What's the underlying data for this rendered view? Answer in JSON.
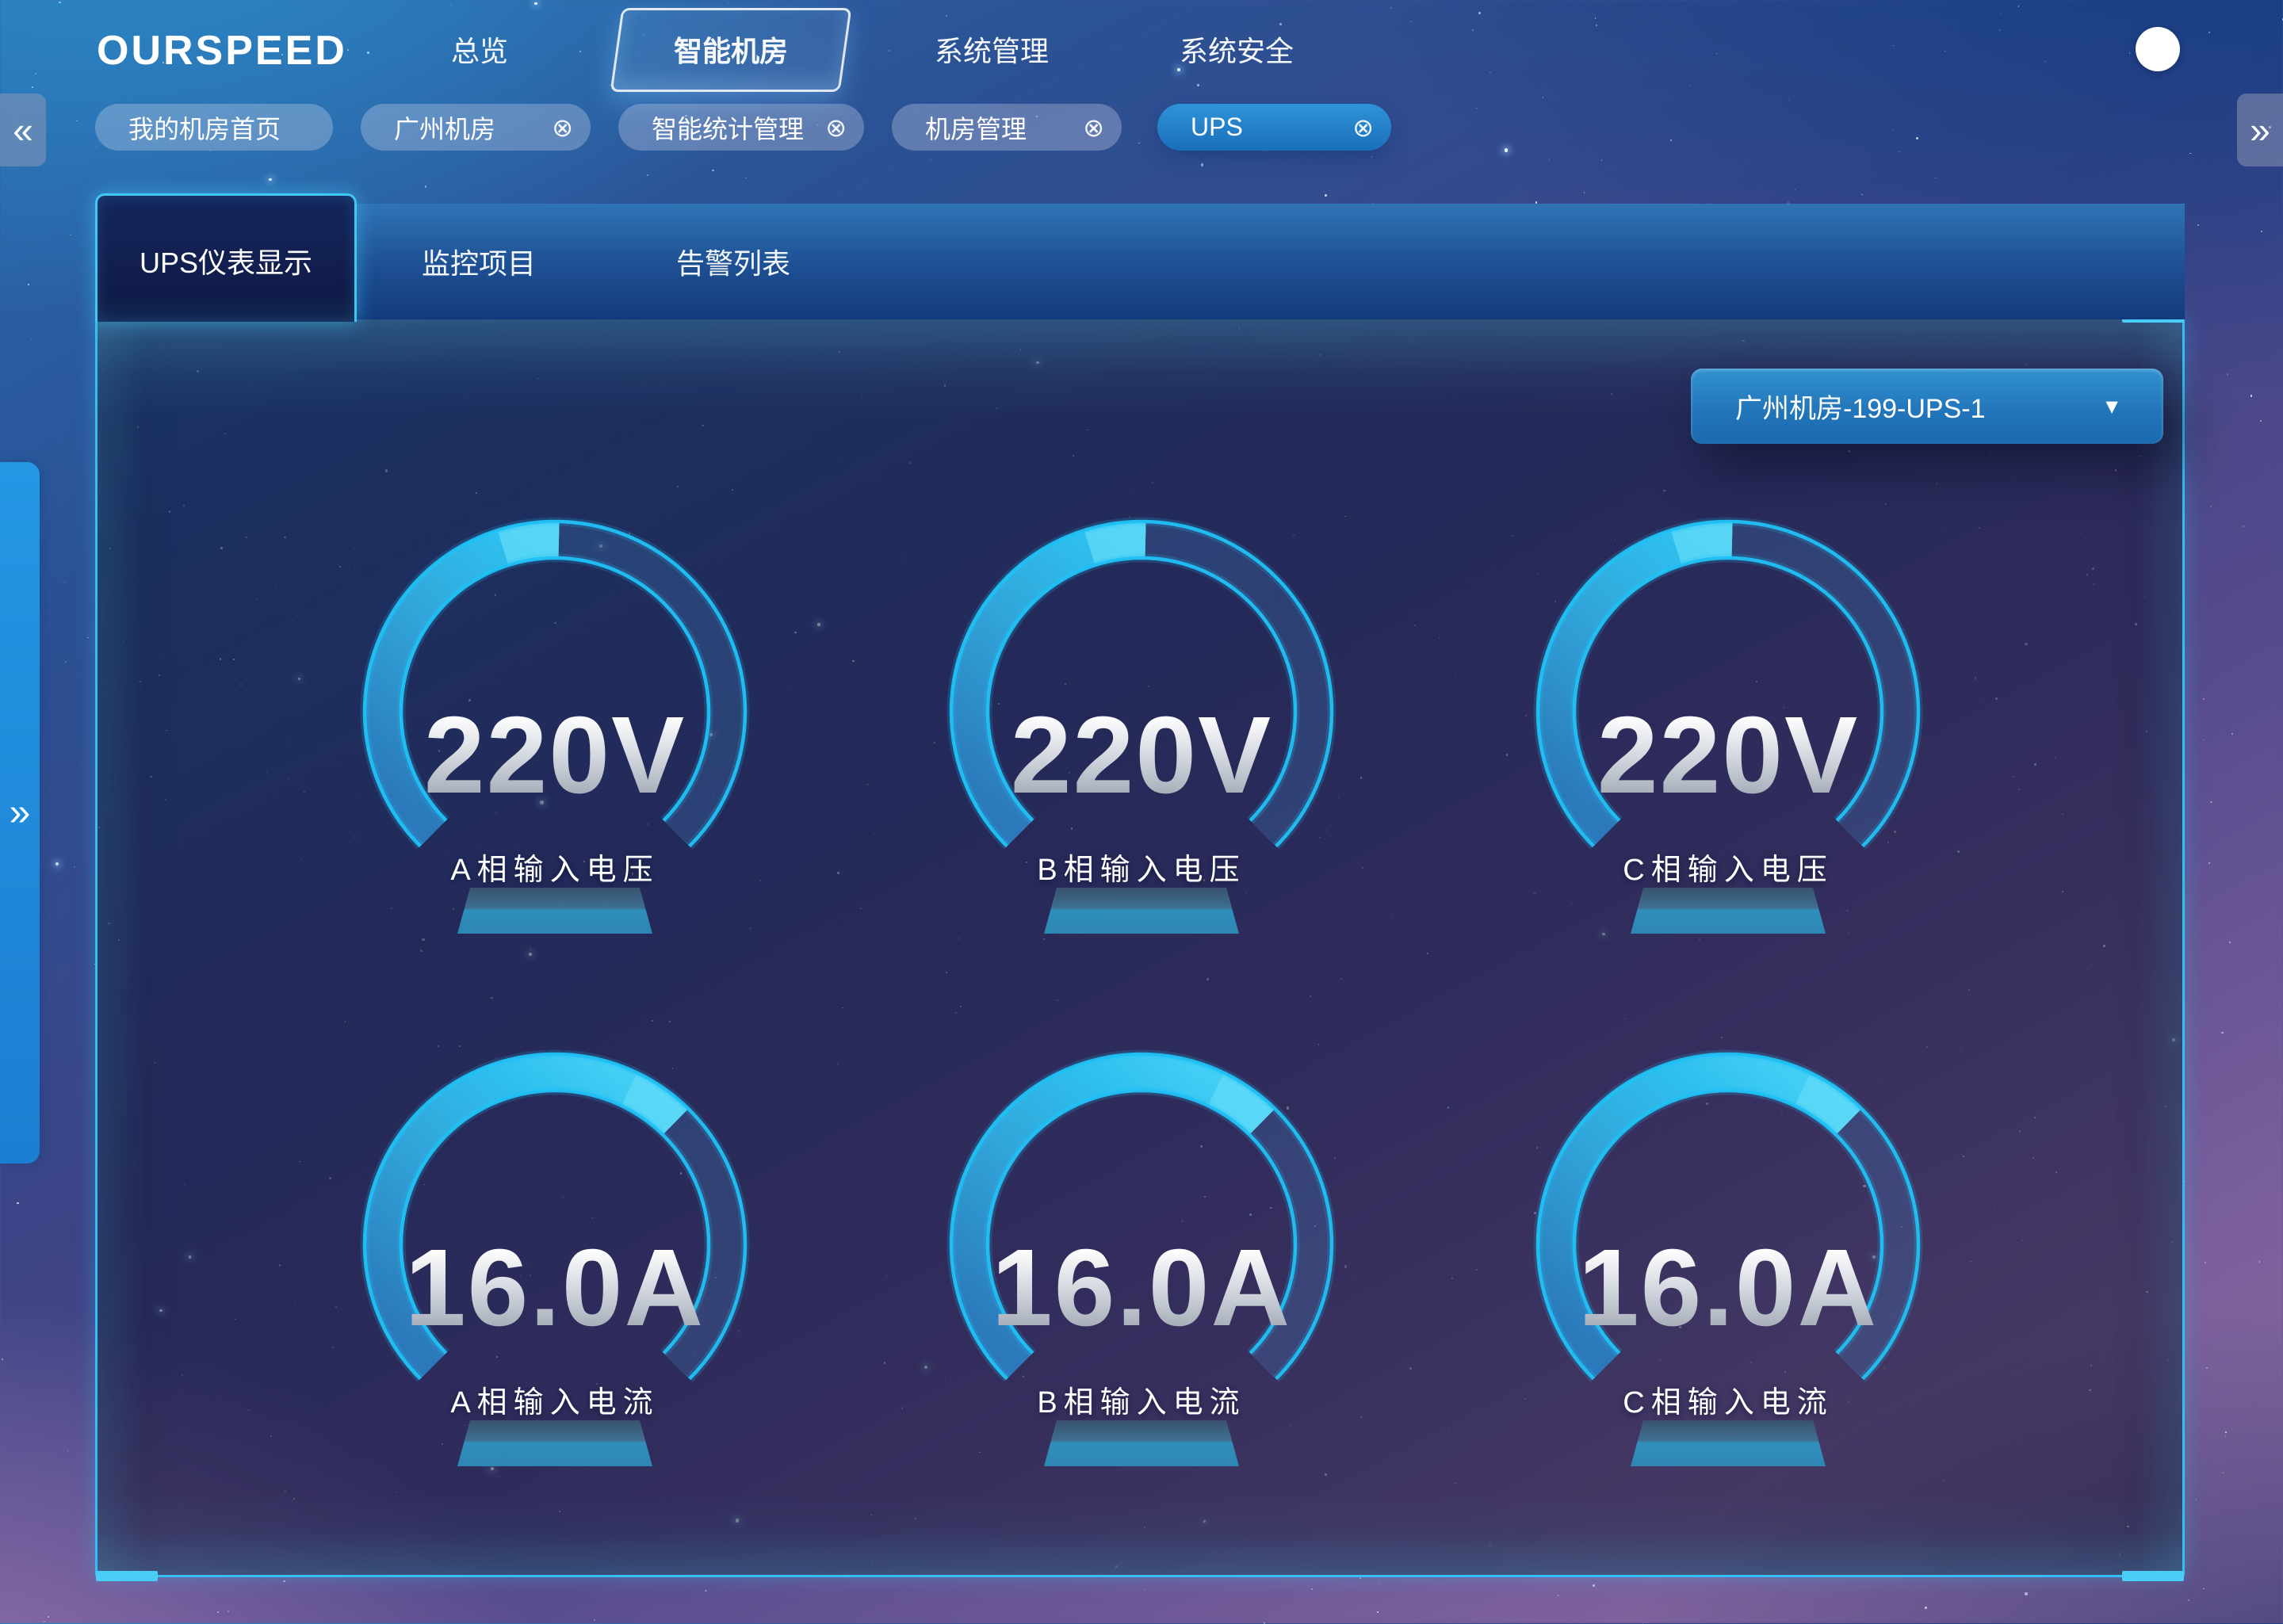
{
  "brand": {
    "logo": "OURSPEED"
  },
  "nav": {
    "items": [
      {
        "label": "总览",
        "active": false
      },
      {
        "label": "智能机房",
        "active": true
      },
      {
        "label": "系统管理",
        "active": false
      },
      {
        "label": "系统安全",
        "active": false
      }
    ],
    "icons": [
      "search",
      "phone",
      "mail",
      "bell"
    ]
  },
  "breadcrumbs": {
    "scroll_left_glyph": "«",
    "scroll_right_glyph": "»",
    "close_glyph": "⊗",
    "tags": [
      {
        "label": "我的机房首页",
        "closable": false,
        "active": false
      },
      {
        "label": "广州机房",
        "closable": true,
        "active": false
      },
      {
        "label": "智能统计管理",
        "closable": true,
        "active": false
      },
      {
        "label": "机房管理",
        "closable": true,
        "active": false
      },
      {
        "label": "UPS",
        "closable": true,
        "active": true
      }
    ]
  },
  "tabs": [
    {
      "label": "UPS仪表显示",
      "active": true
    },
    {
      "label": "监控项目",
      "active": false
    },
    {
      "label": "告警列表",
      "active": false
    }
  ],
  "device_selector": {
    "value": "广州机房-199-UPS-1",
    "caret_glyph": "▼"
  },
  "chart_data": {
    "type": "gauge",
    "layout": "2 rows x 3 columns",
    "gauges": [
      {
        "id": "a-phase-input-voltage",
        "display_value": "220V",
        "value": 220,
        "unit": "V",
        "label": "A相输入电压",
        "percent": 50.5
      },
      {
        "id": "b-phase-input-voltage",
        "display_value": "220V",
        "value": 220,
        "unit": "V",
        "label": "B相输入电压",
        "percent": 50.5
      },
      {
        "id": "c-phase-input-voltage",
        "display_value": "220V",
        "value": 220,
        "unit": "V",
        "label": "C相输入电压",
        "percent": 50.5
      },
      {
        "id": "a-phase-input-current",
        "display_value": "16.0A",
        "value": 16.0,
        "unit": "A",
        "label": "A相输入电流",
        "percent": 66.5
      },
      {
        "id": "b-phase-input-current",
        "display_value": "16.0A",
        "value": 16.0,
        "unit": "A",
        "label": "B相输入电流",
        "percent": 66.5
      },
      {
        "id": "c-phase-input-current",
        "display_value": "16.0A",
        "value": 16.0,
        "unit": "A",
        "label": "C相输入电流",
        "percent": 66.5
      }
    ]
  },
  "colors": {
    "accent_cyan": "#36bef2",
    "gauge_fill_start": "#2b79ba",
    "gauge_fill_end": "#49d2f7",
    "active_tag_blue": "#1a6fba",
    "strip_blue": "#1d4f92"
  }
}
